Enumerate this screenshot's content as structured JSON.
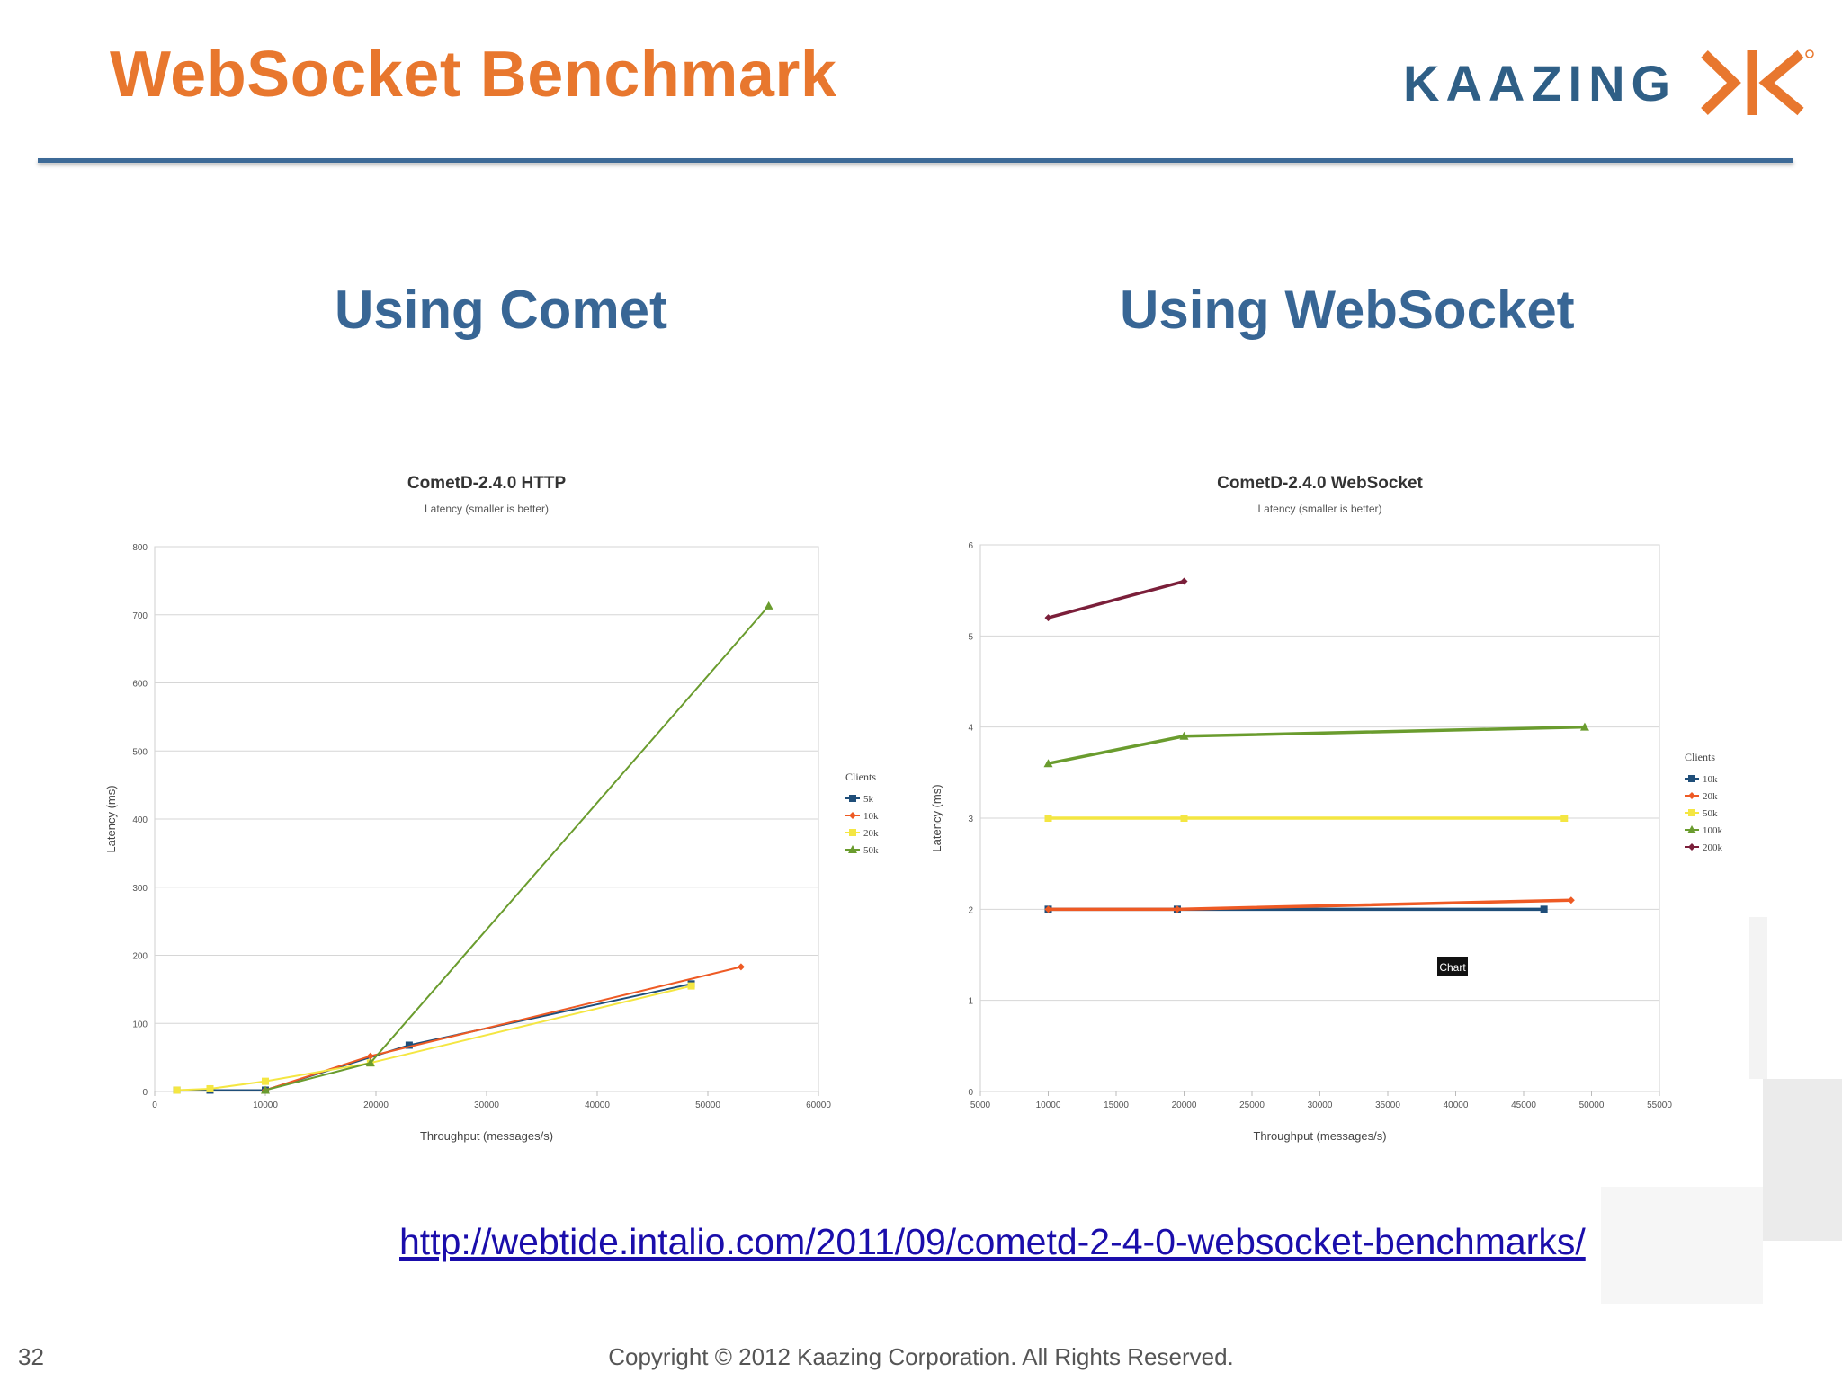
{
  "slide": {
    "title": "WebSocket Benchmark",
    "logo_text": "KAAZING",
    "left_heading": "Using Comet",
    "right_heading": "Using WebSocket",
    "link_text": "http://webtide.intalio.com/2011/09/cometd-2-4-0-websocket-benchmarks/",
    "page_number": "32",
    "copyright": "Copyright © 2012 Kaazing Corporation. All Rights Reserved.",
    "tooltip_text": "Chart",
    "colors": {
      "title": "#e8772e",
      "heading": "#386695",
      "rule": "#3d6a97",
      "callout": "#4a7cc5"
    }
  },
  "chart_data": [
    {
      "type": "line",
      "title": "CometD-2.4.0 HTTP",
      "subtitle": "Latency (smaller is better)",
      "xlabel": "Throughput (messages/s)",
      "ylabel": "Latency (ms)",
      "xlim": [
        0,
        60000
      ],
      "ylim": [
        0,
        800
      ],
      "xticks": [
        0,
        10000,
        20000,
        30000,
        40000,
        50000,
        60000
      ],
      "yticks": [
        0,
        100,
        200,
        300,
        400,
        500,
        600,
        700,
        800
      ],
      "legend_title": "Clients",
      "legend_position": "right",
      "grid": true,
      "series": [
        {
          "name": "5k",
          "color": "#1f4e79",
          "marker": "square",
          "points": [
            [
              2000,
              2
            ],
            [
              5000,
              2
            ],
            [
              10000,
              2
            ],
            [
              23000,
              68
            ],
            [
              48500,
              158
            ]
          ]
        },
        {
          "name": "10k",
          "color": "#ee5a24",
          "marker": "diamond",
          "points": [
            [
              10000,
              2
            ],
            [
              19500,
              52
            ],
            [
              53000,
              183
            ]
          ]
        },
        {
          "name": "20k",
          "color": "#f4e642",
          "marker": "square",
          "points": [
            [
              2000,
              2
            ],
            [
              5000,
              4
            ],
            [
              10000,
              15
            ],
            [
              19500,
              42
            ],
            [
              48500,
              155
            ]
          ]
        },
        {
          "name": "50k",
          "color": "#6a9c2e",
          "marker": "triangle",
          "points": [
            [
              10000,
              2
            ],
            [
              19500,
              42
            ],
            [
              55500,
              713
            ]
          ]
        }
      ]
    },
    {
      "type": "line",
      "title": "CometD-2.4.0 WebSocket",
      "subtitle": "Latency (smaller is better)",
      "xlabel": "Throughput (messages/s)",
      "ylabel": "Latency (ms)",
      "xlim": [
        5000,
        55000
      ],
      "ylim": [
        0,
        6
      ],
      "xticks": [
        5000,
        10000,
        15000,
        20000,
        25000,
        30000,
        35000,
        40000,
        45000,
        50000,
        55000
      ],
      "yticks": [
        0,
        1,
        2,
        3,
        4,
        5,
        6
      ],
      "legend_title": "Clients",
      "legend_position": "right",
      "grid": true,
      "series": [
        {
          "name": "10k",
          "color": "#1f4e79",
          "marker": "square",
          "points": [
            [
              10000,
              2.0
            ],
            [
              19500,
              2.0
            ],
            [
              46500,
              2.0
            ]
          ]
        },
        {
          "name": "20k",
          "color": "#ee5a24",
          "marker": "diamond",
          "points": [
            [
              10000,
              2.0
            ],
            [
              19500,
              2.0
            ],
            [
              48500,
              2.1
            ]
          ]
        },
        {
          "name": "50k",
          "color": "#f4e642",
          "marker": "square",
          "points": [
            [
              10000,
              3.0
            ],
            [
              20000,
              3.0
            ],
            [
              48000,
              3.0
            ]
          ]
        },
        {
          "name": "100k",
          "color": "#6a9c2e",
          "marker": "triangle",
          "points": [
            [
              10000,
              3.6
            ],
            [
              20000,
              3.9
            ],
            [
              49500,
              4.0
            ]
          ]
        },
        {
          "name": "200k",
          "color": "#7b1f3a",
          "marker": "diamond",
          "points": [
            [
              10000,
              5.2
            ],
            [
              20000,
              5.6
            ]
          ]
        }
      ]
    }
  ]
}
